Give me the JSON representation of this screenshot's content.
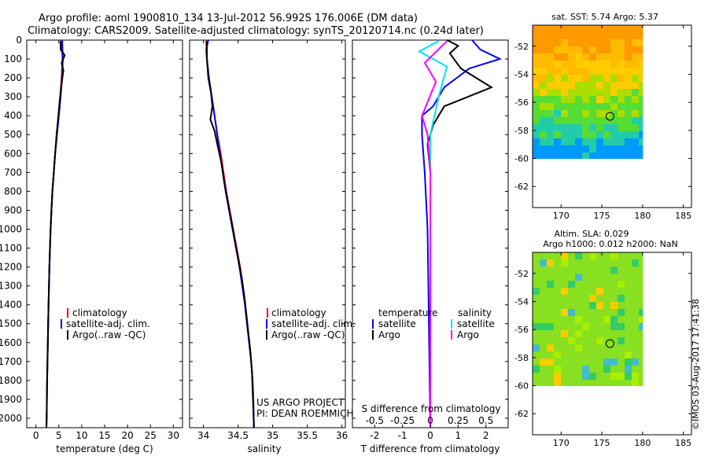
{
  "header": {
    "title_line1": "Argo profile: aoml 1900810_134 13-Jul-2012 56.992S 176.006E (DM data)",
    "title_line2": "Climatology: CARS2009. Satellite-adjusted climatology: synTS_20120714.nc (0.24d later)"
  },
  "colors": {
    "climatology": "#ff0000",
    "satellite": "#0000ff",
    "argo": "#000000",
    "sat_salinity": "#00e5ee",
    "argo_salinity": "#ff00ff"
  },
  "depth_ticks": [
    "0",
    "100",
    "200",
    "300",
    "400",
    "500",
    "600",
    "700",
    "800",
    "900",
    "1000",
    "1100",
    "1200",
    "1300",
    "1400",
    "1500",
    "1600",
    "1700",
    "1800",
    "1900",
    "2000"
  ],
  "chart_data": [
    {
      "type": "line",
      "id": "temperature",
      "xlabel": "temperature (deg C)",
      "x_ticks": [
        "0",
        "5",
        "10",
        "15",
        "20",
        "25",
        "30"
      ],
      "xlim": [
        -2,
        32
      ],
      "ylim": [
        0,
        2050
      ],
      "y_reversed": true,
      "legend": [
        "climatology",
        "satellite-adj. clim.",
        "Argo(..raw -QC)"
      ],
      "series": [
        {
          "name": "climatology",
          "color": "#ff0000",
          "points": [
            [
              5.6,
              0
            ],
            [
              5.7,
              50
            ],
            [
              5.8,
              100
            ],
            [
              5.6,
              200
            ],
            [
              5.3,
              300
            ],
            [
              5.0,
              400
            ],
            [
              4.6,
              500
            ],
            [
              4.2,
              600
            ],
            [
              3.9,
              700
            ],
            [
              3.6,
              800
            ],
            [
              3.4,
              900
            ],
            [
              3.2,
              1000
            ],
            [
              2.95,
              1200
            ],
            [
              2.75,
              1400
            ],
            [
              2.6,
              1600
            ],
            [
              2.45,
              1800
            ],
            [
              2.35,
              2000
            ],
            [
              2.3,
              2050
            ]
          ]
        },
        {
          "name": "satellite-adj. clim.",
          "color": "#0000ff",
          "points": [
            [
              5.74,
              0
            ],
            [
              5.8,
              50
            ],
            [
              5.9,
              100
            ],
            [
              5.7,
              200
            ],
            [
              5.4,
              300
            ],
            [
              5.0,
              400
            ],
            [
              4.6,
              500
            ],
            [
              4.2,
              600
            ],
            [
              3.9,
              700
            ],
            [
              3.6,
              800
            ],
            [
              3.4,
              900
            ],
            [
              3.2,
              1000
            ],
            [
              2.95,
              1200
            ],
            [
              2.75,
              1400
            ],
            [
              2.6,
              1600
            ],
            [
              2.45,
              1800
            ],
            [
              2.35,
              2000
            ],
            [
              2.3,
              2050
            ]
          ]
        },
        {
          "name": "Argo(..raw -QC)",
          "color": "#000000",
          "points": [
            [
              5.37,
              5
            ],
            [
              5.4,
              50
            ],
            [
              6.3,
              80
            ],
            [
              5.6,
              120
            ],
            [
              6.0,
              160
            ],
            [
              5.5,
              250
            ],
            [
              5.2,
              320
            ],
            [
              4.9,
              400
            ],
            [
              4.5,
              500
            ],
            [
              4.2,
              600
            ],
            [
              3.9,
              700
            ],
            [
              3.6,
              800
            ],
            [
              3.4,
              900
            ],
            [
              3.2,
              1000
            ],
            [
              2.95,
              1200
            ],
            [
              2.75,
              1400
            ],
            [
              2.6,
              1600
            ],
            [
              2.45,
              1800
            ],
            [
              2.35,
              2000
            ],
            [
              2.3,
              2050
            ]
          ]
        }
      ]
    },
    {
      "type": "line",
      "id": "salinity",
      "xlabel": "salinity",
      "x_ticks": [
        "34",
        "34.5",
        "35",
        "35.5",
        "36"
      ],
      "xlim": [
        33.8,
        36.05
      ],
      "ylim": [
        0,
        2050
      ],
      "y_reversed": true,
      "legend": [
        "climatology",
        "satellite-adj. clim.",
        "Argo(..raw -QC)"
      ],
      "annotation": [
        "US ARGO PROJECT",
        "PI: DEAN ROEMMICH"
      ],
      "series": [
        {
          "name": "climatology",
          "color": "#ff0000",
          "points": [
            [
              34.04,
              0
            ],
            [
              34.05,
              100
            ],
            [
              34.08,
              200
            ],
            [
              34.12,
              300
            ],
            [
              34.16,
              400
            ],
            [
              34.2,
              500
            ],
            [
              34.25,
              600
            ],
            [
              34.29,
              700
            ],
            [
              34.33,
              800
            ],
            [
              34.38,
              900
            ],
            [
              34.43,
              1000
            ],
            [
              34.48,
              1100
            ],
            [
              34.53,
              1200
            ],
            [
              34.57,
              1300
            ],
            [
              34.6,
              1400
            ],
            [
              34.63,
              1500
            ],
            [
              34.66,
              1600
            ],
            [
              34.69,
              1700
            ],
            [
              34.71,
              1800
            ],
            [
              34.72,
              1900
            ],
            [
              34.73,
              2050
            ]
          ]
        },
        {
          "name": "satellite-adj. clim.",
          "color": "#0000ff",
          "points": [
            [
              34.07,
              0
            ],
            [
              34.04,
              50
            ],
            [
              34.05,
              100
            ],
            [
              34.08,
              200
            ],
            [
              34.12,
              300
            ],
            [
              34.16,
              400
            ],
            [
              34.2,
              500
            ],
            [
              34.24,
              600
            ],
            [
              34.28,
              700
            ],
            [
              34.32,
              800
            ],
            [
              34.37,
              900
            ],
            [
              34.42,
              1000
            ],
            [
              34.47,
              1100
            ],
            [
              34.52,
              1200
            ],
            [
              34.56,
              1300
            ],
            [
              34.6,
              1400
            ],
            [
              34.63,
              1500
            ],
            [
              34.66,
              1600
            ],
            [
              34.69,
              1700
            ],
            [
              34.71,
              1800
            ],
            [
              34.72,
              1900
            ],
            [
              34.73,
              2050
            ]
          ]
        },
        {
          "name": "Argo(..raw -QC)",
          "color": "#000000",
          "points": [
            [
              34.05,
              5
            ],
            [
              34.05,
              100
            ],
            [
              34.07,
              200
            ],
            [
              34.11,
              280
            ],
            [
              34.13,
              350
            ],
            [
              34.1,
              420
            ],
            [
              34.16,
              480
            ],
            [
              34.2,
              550
            ],
            [
              34.26,
              650
            ],
            [
              34.3,
              750
            ],
            [
              34.35,
              850
            ],
            [
              34.4,
              950
            ],
            [
              34.45,
              1050
            ],
            [
              34.5,
              1150
            ],
            [
              34.55,
              1250
            ],
            [
              34.59,
              1350
            ],
            [
              34.62,
              1450
            ],
            [
              34.65,
              1550
            ],
            [
              34.68,
              1650
            ],
            [
              34.7,
              1750
            ],
            [
              34.71,
              1850
            ],
            [
              34.72,
              1950
            ],
            [
              34.73,
              2050
            ]
          ]
        }
      ]
    },
    {
      "type": "line",
      "id": "differences",
      "xlabel": "T difference from climatology",
      "x_ticks": [
        "-2",
        "-1",
        "0",
        "1",
        "2"
      ],
      "xlim": [
        -2.8,
        2.8
      ],
      "top_axis_label": "S difference from climatology",
      "top_ticks": [
        "-0.5",
        "-0.25",
        "0",
        "0.25",
        "0.5"
      ],
      "ylim": [
        0,
        2050
      ],
      "y_reversed": true,
      "legend_temperature_title": "temperature",
      "legend_salinity_title": "salinity",
      "legend_temperature": [
        "satellite",
        "Argo"
      ],
      "legend_salinity": [
        "satellite",
        "Argo"
      ],
      "series": [
        {
          "name": "satellite",
          "group": "temperature",
          "color": "#0000ff",
          "points": [
            [
              1.5,
              0
            ],
            [
              1.8,
              50
            ],
            [
              2.5,
              100
            ],
            [
              1.4,
              150
            ],
            [
              0.5,
              250
            ],
            [
              0.1,
              350
            ],
            [
              -0.3,
              400
            ],
            [
              -0.3,
              500
            ],
            [
              -0.2,
              700
            ],
            [
              -0.1,
              1000
            ],
            [
              -0.05,
              1500
            ],
            [
              0,
              2050
            ]
          ]
        },
        {
          "name": "Argo",
          "group": "temperature",
          "color": "#000000",
          "points": [
            [
              0.6,
              0
            ],
            [
              1.0,
              30
            ],
            [
              0.7,
              70
            ],
            [
              1.1,
              150
            ],
            [
              2.2,
              250
            ],
            [
              0.5,
              350
            ],
            [
              0.1,
              450
            ],
            [
              -0.1,
              550
            ],
            [
              0,
              700
            ],
            [
              0,
              1000
            ],
            [
              0,
              2050
            ]
          ]
        },
        {
          "name": "satellite",
          "group": "salinity",
          "color": "#00e5ee",
          "points": [
            [
              0.3,
              5
            ],
            [
              -0.4,
              60
            ],
            [
              0.6,
              140
            ],
            [
              0.3,
              300
            ],
            [
              0.0,
              500
            ],
            [
              0,
              700
            ],
            [
              0,
              1000
            ],
            [
              0,
              2050
            ]
          ]
        },
        {
          "name": "Argo",
          "group": "salinity",
          "color": "#ff00ff",
          "points": [
            [
              0.6,
              5
            ],
            [
              -0.2,
              120
            ],
            [
              0.2,
              220
            ],
            [
              -0.3,
              400
            ],
            [
              -0.1,
              500
            ],
            [
              0,
              700
            ],
            [
              0,
              1000
            ],
            [
              0,
              2050
            ]
          ]
        }
      ]
    },
    {
      "type": "heatmap",
      "id": "sst_map",
      "title": "sat. SST: 5.74  Argo: 5.37",
      "x_ticks": [
        "170",
        "175",
        "180",
        "185"
      ],
      "y_ticks": [
        "-52",
        "-54",
        "-56",
        "-58",
        "-60",
        "-62"
      ],
      "xlim": [
        166.5,
        186
      ],
      "ylim": [
        -63.5,
        -50.5
      ],
      "data_extent": {
        "lon": [
          166.5,
          180
        ],
        "lat": [
          -60,
          -50.5
        ]
      },
      "argo_position": {
        "lon": 176.0,
        "lat": -57.0
      },
      "colors_north_to_south": [
        "#ff9900",
        "#ffbb00",
        "#ffcc00",
        "#aadd00",
        "#55dd33",
        "#22ccaa",
        "#0099ff"
      ]
    },
    {
      "type": "heatmap",
      "id": "sla_map",
      "title_line1": "Altim. SLA: 0.029",
      "title_line2": "Argo h1000: 0.012 h2000: NaN",
      "x_ticks": [
        "170",
        "175",
        "180",
        "185"
      ],
      "y_ticks": [
        "-52",
        "-54",
        "-56",
        "-58",
        "-60",
        "-62"
      ],
      "xlim": [
        166.5,
        186
      ],
      "ylim": [
        -63.5,
        -50.5
      ],
      "data_extent": {
        "lon": [
          166.5,
          180
        ],
        "lat": [
          -60,
          -50.5
        ]
      },
      "argo_position": {
        "lon": 176.0,
        "lat": -57.0
      },
      "base_color": "#88e020"
    }
  ],
  "footer": {
    "timestamp": "©IMOS 03-Aug-2017 17:41:38"
  }
}
